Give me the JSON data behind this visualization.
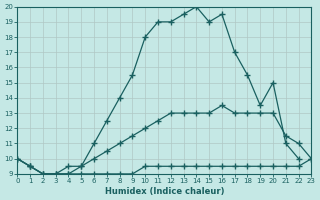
{
  "xlabel": "Humidex (Indice chaleur)",
  "xlim": [
    0,
    23
  ],
  "ylim": [
    9,
    20
  ],
  "xticks": [
    0,
    1,
    2,
    3,
    4,
    5,
    6,
    7,
    8,
    9,
    10,
    11,
    12,
    13,
    14,
    15,
    16,
    17,
    18,
    19,
    20,
    21,
    22,
    23
  ],
  "yticks": [
    9,
    10,
    11,
    12,
    13,
    14,
    15,
    16,
    17,
    18,
    19,
    20
  ],
  "background_color": "#c5e8e5",
  "line_color": "#1a6060",
  "grid_color": "#b0c8c5",
  "series": [
    {
      "x": [
        0,
        1,
        2,
        3,
        4,
        5,
        6,
        7,
        8,
        9,
        10,
        11,
        12,
        13,
        14,
        15,
        16,
        17,
        18,
        19,
        20,
        21,
        22,
        23
      ],
      "y": [
        10,
        9.5,
        9,
        9,
        9,
        9,
        9,
        9,
        9,
        9,
        9.5,
        9.5,
        9.5,
        9.5,
        9.5,
        9.5,
        9.5,
        9.5,
        9.5,
        9.5,
        9.5,
        9.5,
        9.5,
        10
      ]
    },
    {
      "x": [
        0,
        1,
        2,
        3,
        4,
        5,
        6,
        7,
        8,
        9,
        10,
        11,
        12,
        13,
        14,
        15,
        16,
        17,
        18,
        19,
        20,
        21,
        22,
        23
      ],
      "y": [
        10,
        9.5,
        9,
        9,
        9,
        9.5,
        10,
        10.5,
        11,
        11.5,
        12,
        12.5,
        13,
        13,
        13,
        13,
        13.5,
        13,
        13,
        13,
        13,
        11.5,
        11,
        10
      ]
    },
    {
      "x": [
        0,
        1,
        2,
        3,
        4,
        5,
        6,
        7,
        8,
        9,
        10,
        11,
        12,
        13,
        14,
        15,
        16,
        17,
        18,
        19,
        20,
        21,
        22
      ],
      "y": [
        10,
        9.5,
        9,
        9,
        9.5,
        9.5,
        11,
        12.5,
        14,
        15.5,
        18,
        19,
        19,
        19.5,
        20,
        19,
        19.5,
        17,
        15.5,
        13.5,
        15,
        11,
        10
      ]
    }
  ]
}
